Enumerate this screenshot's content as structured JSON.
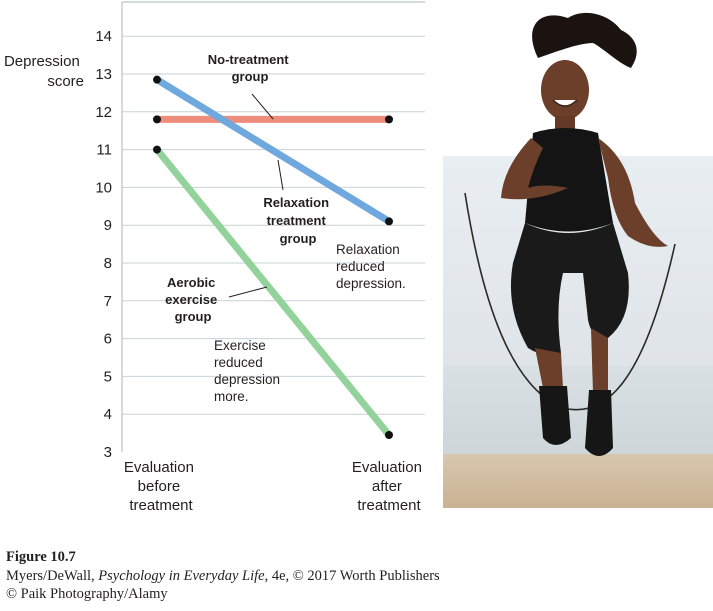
{
  "chart_data": {
    "type": "line",
    "ylabel": [
      "Depression",
      "score"
    ],
    "ylim": [
      3,
      14.8
    ],
    "yticks": [
      3,
      4,
      5,
      6,
      7,
      8,
      9,
      10,
      11,
      12,
      13,
      14
    ],
    "grid": true,
    "categories": [
      [
        "Evaluation",
        "before",
        "treatment"
      ],
      [
        "Evaluation",
        "after",
        "treatment"
      ]
    ],
    "series": [
      {
        "name": "No-treatment group",
        "color": "#ef8d7c",
        "values": [
          11.8,
          11.8
        ]
      },
      {
        "name": "Relaxation treatment group",
        "color": "#6fa8dc",
        "values": [
          12.85,
          9.1
        ]
      },
      {
        "name": "Aerobic exercise group",
        "color": "#93d39b",
        "values": [
          11.0,
          3.45
        ]
      }
    ],
    "annotations": {
      "no_treatment": [
        "No-treatment",
        "group"
      ],
      "relaxation": [
        "Relaxation",
        "treatment",
        "group"
      ],
      "aerobic": [
        "Aerobic",
        "exercise",
        "group"
      ],
      "relaxation_note": [
        "Relaxation",
        "reduced",
        "depression."
      ],
      "exercise_note": [
        "Exercise",
        "reduced",
        "depression",
        "more."
      ]
    }
  },
  "photo": {
    "icon": "woman-jumping-rope-photo"
  },
  "caption": {
    "figure": "Figure 10.7",
    "line1_pre": "Myers/DeWall, ",
    "line1_title": "Psychology in Everyday Life",
    "line1_post": ", 4e, © 2017 Worth Publishers",
    "line2": "© Paik Photography/Alamy"
  }
}
